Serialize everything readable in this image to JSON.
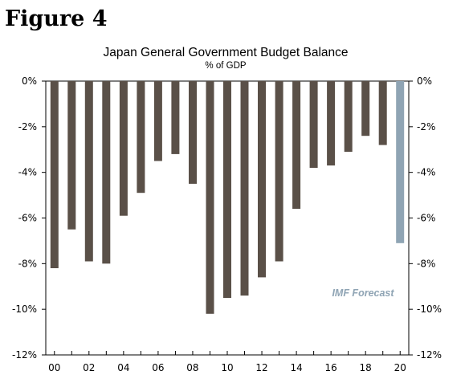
{
  "figure_label": "Figure 4",
  "colors": {
    "actual": "#5a5048",
    "forecast": "#8fa4b4",
    "annotation": "#8fa4b4",
    "axis": "#000000"
  },
  "chart_data": {
    "type": "bar",
    "title": "Japan General Government Budget Balance",
    "subtitle": "% of GDP",
    "categories": [
      "00",
      "01",
      "02",
      "03",
      "04",
      "05",
      "06",
      "07",
      "08",
      "09",
      "10",
      "11",
      "12",
      "13",
      "14",
      "15",
      "16",
      "17",
      "18",
      "19",
      "20"
    ],
    "series": [
      {
        "values": [
          -8.2,
          -6.5,
          -7.9,
          -8.0,
          -5.9,
          -4.9,
          -3.5,
          -3.2,
          -4.5,
          -10.2,
          -9.5,
          -9.4,
          -8.6,
          -7.9,
          -5.6,
          -3.8,
          -3.7,
          -3.1,
          -2.4,
          -2.8,
          -7.1
        ]
      }
    ],
    "forecast_from_index": 20,
    "ylim": [
      -12,
      0
    ],
    "y_ticks": [
      0,
      -2,
      -4,
      -6,
      -8,
      -10,
      -12
    ],
    "y_tick_labels": [
      "0%",
      "-2%",
      "-4%",
      "-6%",
      "-8%",
      "-10%",
      "-12%"
    ],
    "x_tick_labels": [
      "00",
      "02",
      "04",
      "06",
      "08",
      "10",
      "12",
      "14",
      "16",
      "18",
      "20"
    ],
    "annotation": "IMF Forecast",
    "grid": false,
    "legend": "none"
  }
}
